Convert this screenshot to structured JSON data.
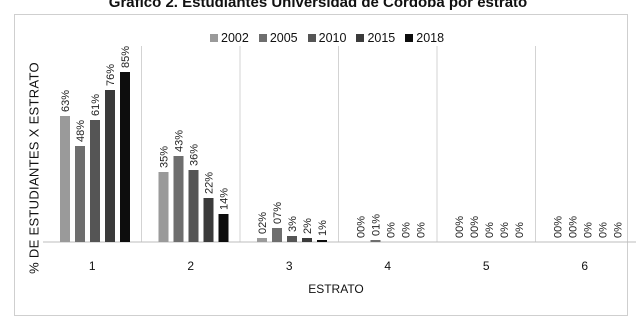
{
  "chart_data": {
    "type": "bar",
    "title": "Gráfico 2. Estudiantes Universidad de Córdoba por estrato",
    "xlabel": "ESTRATO",
    "ylabel": "% DE ESTUDIANTES X ESTRATO",
    "categories": [
      "1",
      "2",
      "3",
      "4",
      "5",
      "6"
    ],
    "ylim": [
      0,
      100
    ],
    "grid": "vertical-separators",
    "legend_position": "top",
    "series": [
      {
        "name": "2002",
        "color": "#9a9a9a",
        "values": [
          63,
          35,
          2,
          0,
          0,
          0
        ],
        "labels": [
          "63%",
          "35%",
          "02%",
          "00%",
          "00%",
          "00%"
        ]
      },
      {
        "name": "2005",
        "color": "#6e6e6e",
        "values": [
          48,
          43,
          7,
          1,
          0,
          0
        ],
        "labels": [
          "48%",
          "43%",
          "07%",
          "01%",
          "00%",
          "00%"
        ]
      },
      {
        "name": "2010",
        "color": "#555555",
        "values": [
          61,
          36,
          3,
          0,
          0,
          0
        ],
        "labels": [
          "61%",
          "36%",
          "3%",
          "0%",
          "0%",
          "0%"
        ]
      },
      {
        "name": "2015",
        "color": "#3b3b3b",
        "values": [
          76,
          22,
          2,
          0,
          0,
          0
        ],
        "labels": [
          "76%",
          "22%",
          "2%",
          "0%",
          "0%",
          "0%"
        ]
      },
      {
        "name": "2018",
        "color": "#0d0d0d",
        "values": [
          85,
          14,
          1,
          0,
          0,
          0
        ],
        "labels": [
          "85%",
          "14%",
          "1%",
          "0%",
          "0%",
          "0%"
        ]
      }
    ]
  }
}
